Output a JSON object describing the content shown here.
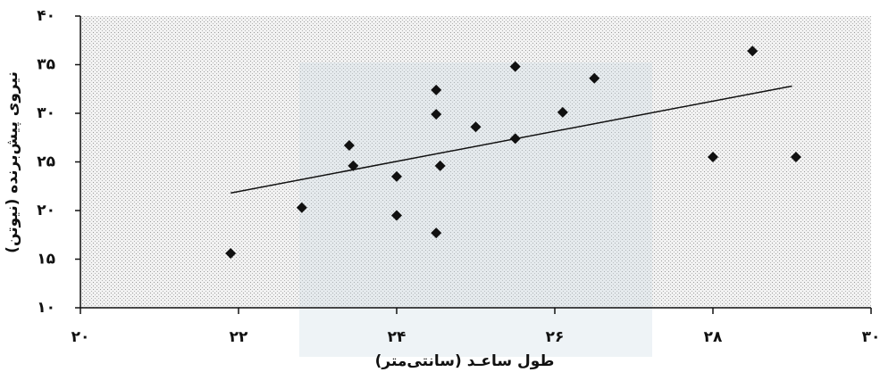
{
  "chart_data": {
    "type": "scatter",
    "x_label": "طول ساعـد (سانتی‌متر)",
    "y_label": "نیروی پیش‌برنده (نیوتن)",
    "color": "#111111",
    "series": [
      {
        "x": [
          21.9,
          22.8,
          23.4,
          23.45,
          24.0,
          24.0,
          24.5,
          24.5,
          24.5,
          24.55,
          25.0,
          25.5,
          25.5,
          26.1,
          26.5,
          28.0,
          28.5,
          29.05
        ],
        "values": [
          15.6,
          20.3,
          26.7,
          24.6,
          23.5,
          19.5,
          32.4,
          29.9,
          17.7,
          24.6,
          28.6,
          34.8,
          27.4,
          30.1,
          33.6,
          25.5,
          36.4,
          25.5
        ]
      }
    ],
    "trendline": {
      "x": [
        21.9,
        29.0
      ],
      "values": [
        21.8,
        32.8
      ]
    },
    "xlim": [
      20,
      30
    ],
    "xticks": [
      {
        "value": 20,
        "label": "۲۰"
      },
      {
        "value": 22,
        "label": "۲۲"
      },
      {
        "value": 24,
        "label": "۲۴"
      },
      {
        "value": 26,
        "label": "۲۶"
      },
      {
        "value": 28,
        "label": "۲۸"
      },
      {
        "value": 30,
        "label": "۳۰"
      }
    ],
    "ylim": [
      10,
      40
    ],
    "yticks": [
      {
        "value": 10,
        "label": "۱۰"
      },
      {
        "value": 15,
        "label": "۱۵"
      },
      {
        "value": 20,
        "label": "۲۰"
      },
      {
        "value": 25,
        "label": "۲۵"
      },
      {
        "value": 30,
        "label": "۳۰"
      },
      {
        "value": 35,
        "label": "۳۵"
      },
      {
        "value": 40,
        "label": "۴۰"
      }
    ]
  }
}
